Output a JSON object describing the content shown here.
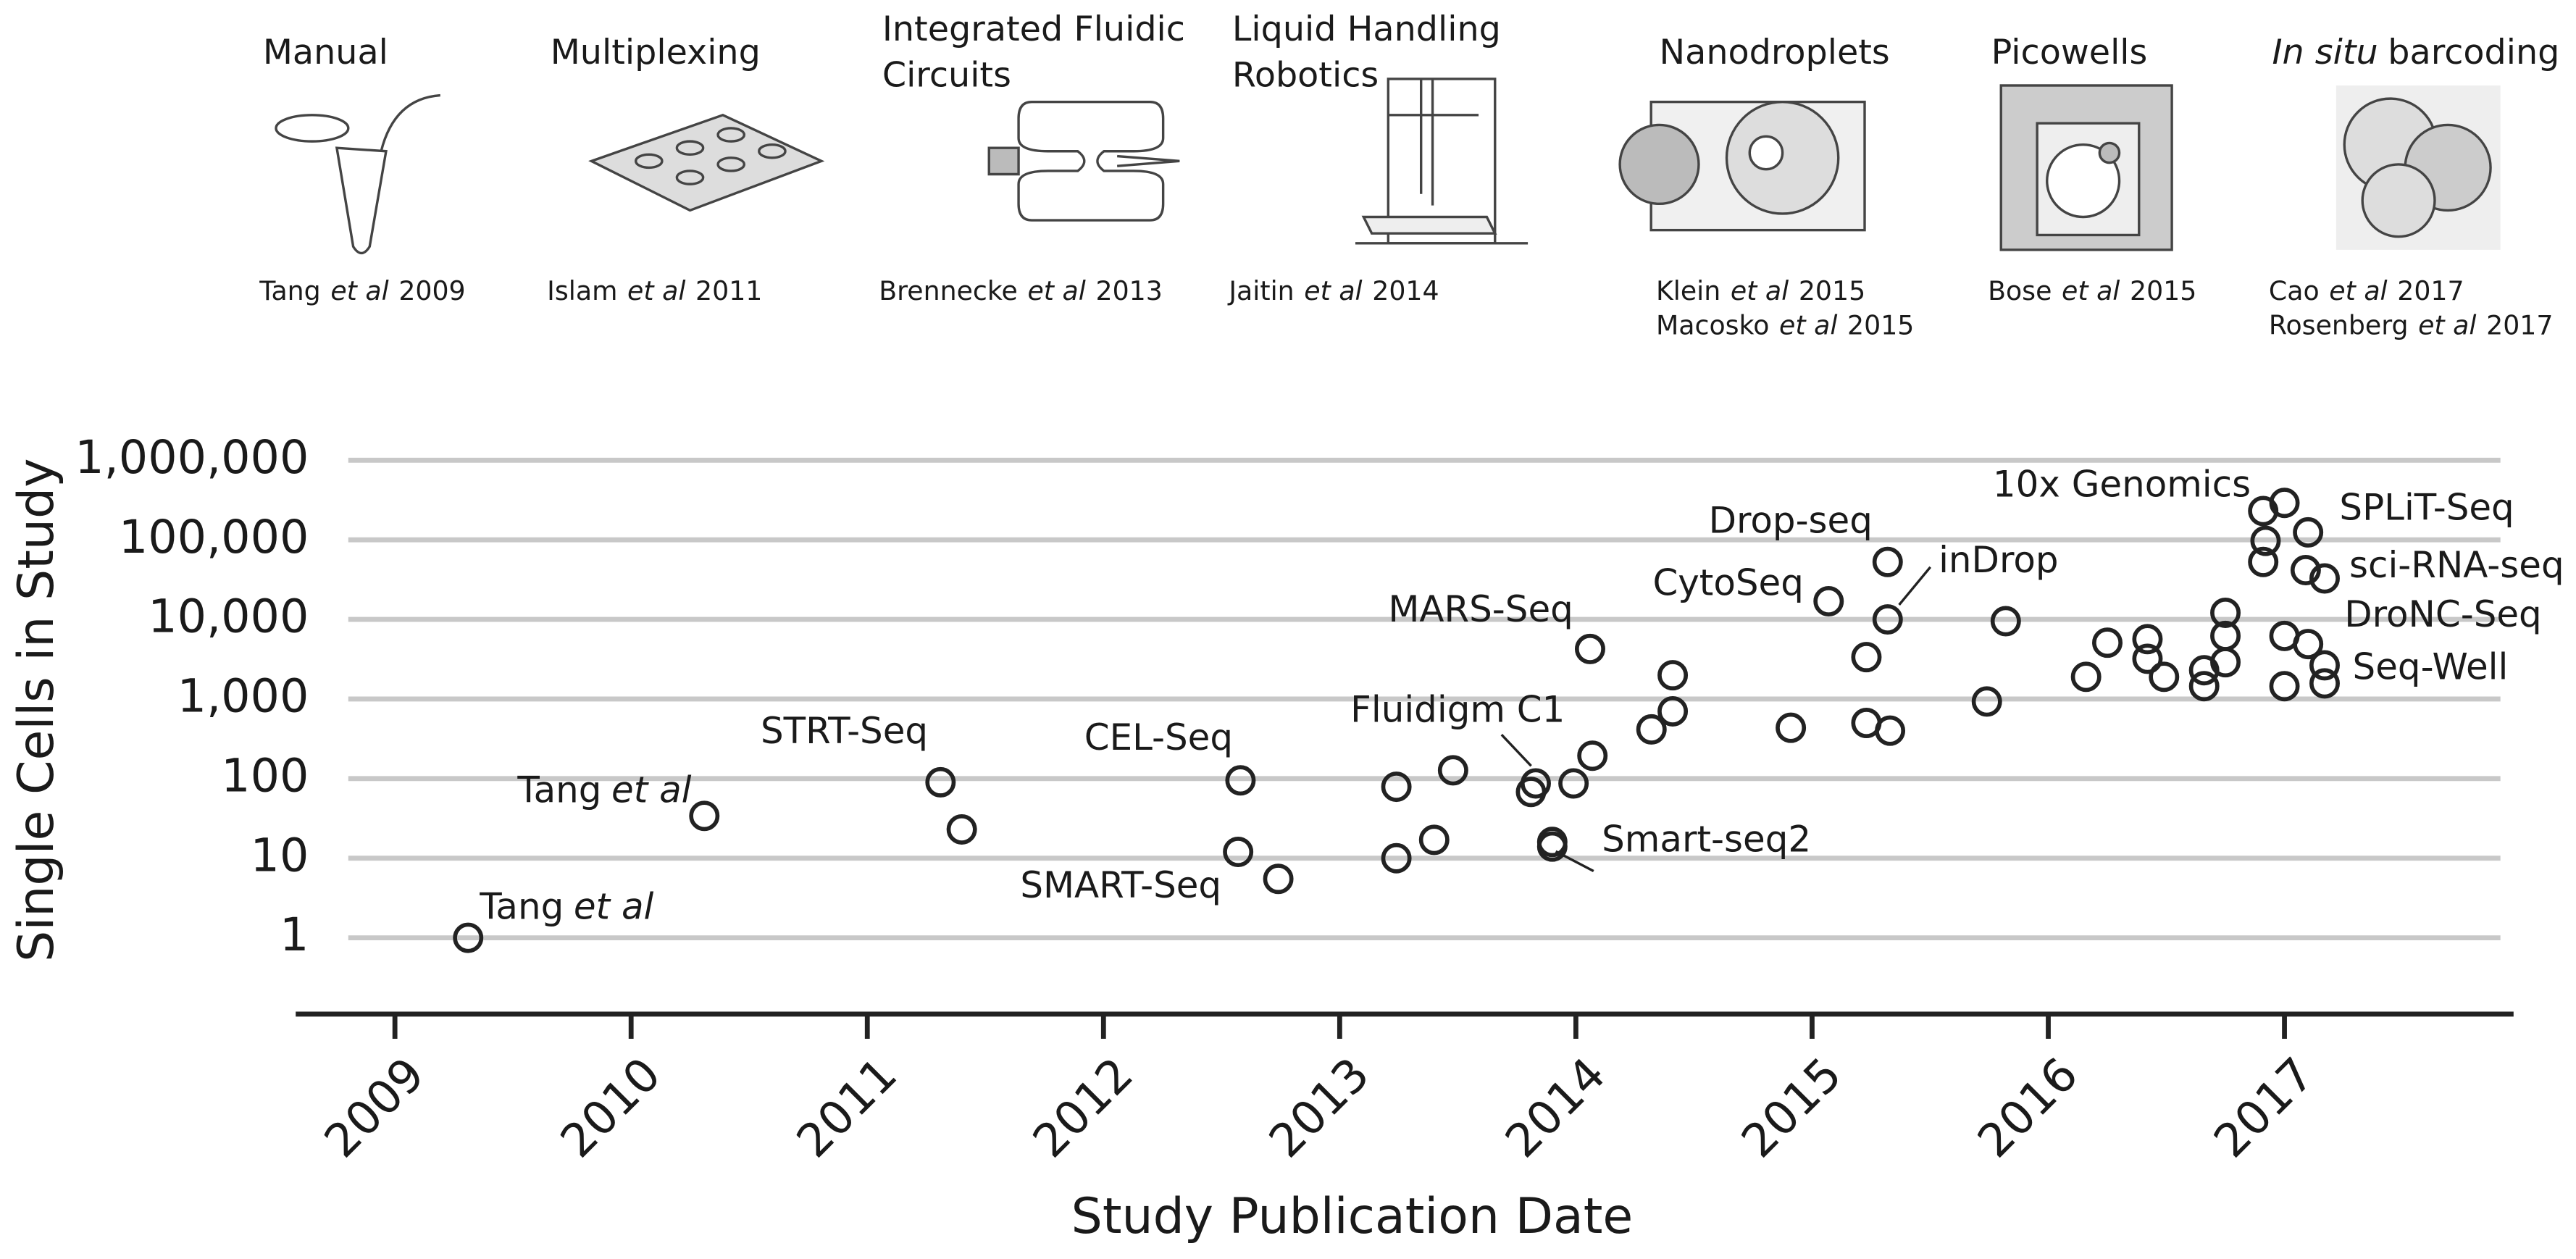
{
  "header": {
    "panels": [
      {
        "title": [
          [
            {
              "text": "Manual",
              "italic": false
            }
          ]
        ],
        "citation": [
          [
            {
              "text": "Tang",
              "italic": false
            },
            {
              "text": "et al",
              "italic": true
            },
            {
              "text": "2009",
              "italic": false
            }
          ]
        ]
      },
      {
        "title": [
          [
            {
              "text": "Multiplexing",
              "italic": false
            }
          ]
        ],
        "citation": [
          [
            {
              "text": "Islam",
              "italic": false
            },
            {
              "text": "et al",
              "italic": true
            },
            {
              "text": "2011",
              "italic": false
            }
          ]
        ]
      },
      {
        "title": [
          [
            {
              "text": "Integrated Fluidic",
              "italic": false
            }
          ],
          [
            {
              "text": "Circuits",
              "italic": false
            }
          ]
        ],
        "citation": [
          [
            {
              "text": "Brennecke",
              "italic": false
            },
            {
              "text": "et al",
              "italic": true
            },
            {
              "text": "2013",
              "italic": false
            }
          ]
        ]
      },
      {
        "title": [
          [
            {
              "text": "Liquid Handling",
              "italic": false
            }
          ],
          [
            {
              "text": "Robotics",
              "italic": false
            }
          ]
        ],
        "citation": [
          [
            {
              "text": "Jaitin",
              "italic": false
            },
            {
              "text": "et al",
              "italic": true
            },
            {
              "text": "2014",
              "italic": false
            }
          ]
        ]
      },
      {
        "title": [
          [
            {
              "text": "Nanodroplets",
              "italic": false
            }
          ]
        ],
        "citation": [
          [
            {
              "text": "Klein",
              "italic": false
            },
            {
              "text": "et al",
              "italic": true
            },
            {
              "text": "2015",
              "italic": false
            }
          ],
          [
            {
              "text": "Macosko",
              "italic": false
            },
            {
              "text": "et al",
              "italic": true
            },
            {
              "text": "2015",
              "italic": false
            }
          ]
        ]
      },
      {
        "title": [
          [
            {
              "text": "Picowells",
              "italic": false
            }
          ]
        ],
        "citation": [
          [
            {
              "text": "Bose",
              "italic": false
            },
            {
              "text": "et al",
              "italic": true
            },
            {
              "text": "2015",
              "italic": false
            }
          ]
        ]
      },
      {
        "title": [
          [
            {
              "text": "In situ",
              "italic": true
            },
            {
              "text": "barcoding",
              "italic": false
            }
          ]
        ],
        "citation": [
          [
            {
              "text": "Cao",
              "italic": false
            },
            {
              "text": "et al",
              "italic": true
            },
            {
              "text": "2017",
              "italic": false
            }
          ],
          [
            {
              "text": "Rosenberg",
              "italic": false
            },
            {
              "text": "et al",
              "italic": true
            },
            {
              "text": "2017",
              "italic": false
            }
          ]
        ]
      }
    ]
  },
  "chart_data": {
    "type": "scatter",
    "x_label": "Study Publication Date",
    "y_label": "Single Cells in Study",
    "log_y": true,
    "grid": true,
    "color": "#222222",
    "xlim": [
      2008.58,
      2017.97
    ],
    "xticks": [
      2009,
      2010,
      2011,
      2012,
      2013,
      2014,
      2015,
      2016,
      2017
    ],
    "ylim": [
      0.11,
      1000000
    ],
    "yticks": [
      1,
      10,
      100,
      {
        "value": 1000,
        "label": "1,000"
      },
      {
        "value": 10000,
        "label": "10,000"
      },
      {
        "value": 100000,
        "label": "100,000"
      },
      {
        "value": 1000000,
        "label": "1,000,000"
      }
    ],
    "x": [
      2009.31,
      2010.31,
      2011.31,
      2011.4,
      2012.58,
      2012.57,
      2012.74,
      2013.24,
      2013.24,
      2013.4,
      2013.48,
      2013.83,
      2013.81,
      2013.9,
      2013.9,
      2013.99,
      2014.06,
      2014.07,
      2014.32,
      2014.41,
      2014.41,
      2014.91,
      2015.07,
      2015.23,
      2015.23,
      2015.32,
      2015.32,
      2015.33,
      2015.74,
      2015.82,
      2016.16,
      2016.25,
      2016.42,
      2016.42,
      2016.49,
      2016.66,
      2016.66,
      2016.75,
      2016.75,
      2016.75,
      2016.91,
      2016.92,
      2016.91,
      2017.0,
      2017.1,
      2017.09,
      2017.17,
      2017.0,
      2017.1,
      2017.17,
      2017.0,
      2017.17
    ],
    "values": [
      1,
      34,
      90,
      23,
      95,
      12,
      5.5,
      79,
      10,
      17,
      127,
      87,
      68,
      16,
      14,
      87,
      4250,
      194,
      415,
      1990,
      700,
      435,
      16900,
      3360,
      500,
      52700,
      10000,
      400,
      930,
      9500,
      1900,
      5100,
      5650,
      3200,
      1900,
      2300,
      1450,
      12100,
      6200,
      2900,
      230000,
      97000,
      52700,
      291000,
      124000,
      41600,
      32700,
      6200,
      4900,
      2650,
      1450,
      1570
    ],
    "annotations": [
      [
        {
          "text": "Tang",
          "italic": false
        },
        {
          "text": "et al",
          "italic": true
        }
      ],
      [
        {
          "text": "Tang",
          "italic": false
        },
        {
          "text": "et al",
          "italic": true
        }
      ],
      [
        {
          "text": "STRT-Seq",
          "italic": false
        }
      ],
      [
        {
          "text": "CEL-Seq",
          "italic": false
        }
      ],
      [
        {
          "text": "SMART-Seq",
          "italic": false
        }
      ],
      [
        {
          "text": "Fluidigm C1",
          "italic": false
        }
      ],
      [
        {
          "text": "MARS-Seq",
          "italic": false
        }
      ],
      [
        {
          "text": "Smart-seq2",
          "italic": false
        }
      ],
      [
        {
          "text": "CytoSeq",
          "italic": false
        }
      ],
      [
        {
          "text": "Drop-seq",
          "italic": false
        }
      ],
      [
        {
          "text": "inDrop",
          "italic": false
        }
      ],
      [
        {
          "text": "10x Genomics",
          "italic": false
        }
      ],
      [
        {
          "text": "SPLiT-Seq",
          "italic": false
        }
      ],
      [
        {
          "text": "sci-RNA-seq",
          "italic": false
        }
      ],
      [
        {
          "text": "DroNC-Seq",
          "italic": false
        }
      ],
      [
        {
          "text": "Seq-Well",
          "italic": false
        }
      ]
    ]
  }
}
